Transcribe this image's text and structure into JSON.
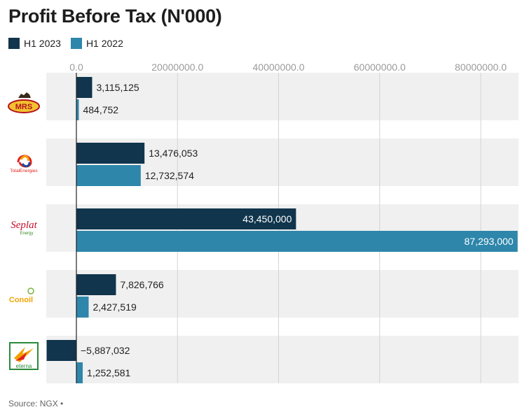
{
  "chart_data": {
    "type": "bar",
    "orientation": "horizontal",
    "title": "Profit Before Tax (N'000)",
    "xlabel": "",
    "ylabel": "",
    "xlim": [
      -6000000,
      87300000
    ],
    "ticks": [
      0,
      20000000,
      40000000,
      60000000,
      80000000
    ],
    "tick_labels": [
      "0.0",
      "20000000.0",
      "40000000.0",
      "60000000.0",
      "80000000.0"
    ],
    "categories": [
      "MRS",
      "TotalEnergies",
      "Seplat Energy",
      "Conoil",
      "Eterna"
    ],
    "series": [
      {
        "name": "H1 2023",
        "color": "#10354d",
        "values": [
          3115125,
          13476053,
          43450000,
          7826766,
          -5887032
        ],
        "labels": [
          "3,115,125",
          "13,476,053",
          "43,450,000",
          "7,826,766",
          "−5,887,032"
        ]
      },
      {
        "name": "H1 2022",
        "color": "#2e86ab",
        "values": [
          484752,
          12732574,
          87293000,
          2427519,
          1252581
        ],
        "labels": [
          "484,752",
          "12,732,574",
          "87,293,000",
          "2,427,519",
          "1,252,581"
        ]
      }
    ],
    "gridlines": true,
    "legend": "top-left"
  },
  "logos": {
    "mrs": "MRS",
    "total": "TotalEnergies",
    "seplat_main": "Seplat",
    "seplat_sub": "Energy",
    "conoil": "Conoil",
    "eterna": "eterna"
  },
  "source": "Source: NGX •"
}
